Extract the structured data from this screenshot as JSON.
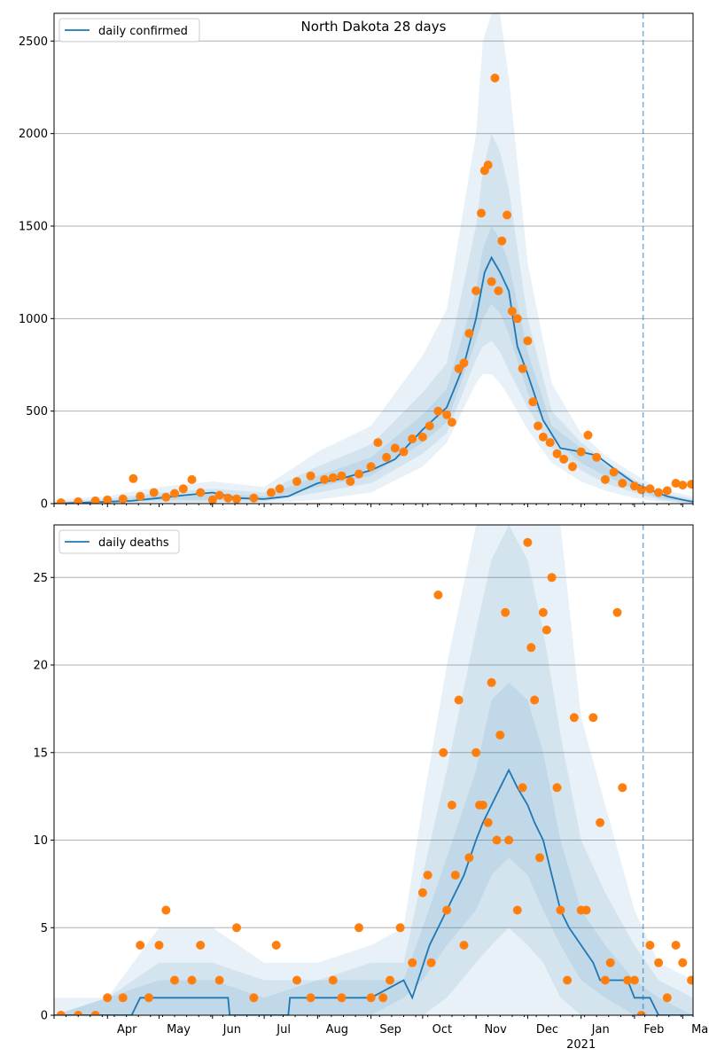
{
  "chart_data": [
    {
      "type": "line",
      "title": "North Dakota 28 days",
      "legend": {
        "label": "daily confirmed",
        "placement": "top-left"
      },
      "ylim": [
        0,
        2650
      ],
      "yticks": [
        0,
        500,
        1000,
        1500,
        2000,
        2500
      ],
      "ytick_labels": [
        "0",
        "500",
        "1000",
        "1500",
        "2000",
        "2500"
      ],
      "grid": "horizontal",
      "colors": {
        "line": "#1f77b4",
        "band": "#1f77b4",
        "points": "#ff7f0e",
        "vline": "#1f77b4"
      },
      "forecast_start": "2021-02-06",
      "series": [
        {
          "kind": "line",
          "x": [
            "2020-03-01",
            "2020-03-15",
            "2020-04-01",
            "2020-04-15",
            "2020-05-01",
            "2020-05-15",
            "2020-06-01",
            "2020-06-15",
            "2020-07-01",
            "2020-07-15",
            "2020-08-01",
            "2020-08-15",
            "2020-09-01",
            "2020-09-15",
            "2020-10-01",
            "2020-10-15",
            "2020-10-25",
            "2020-11-01",
            "2020-11-06",
            "2020-11-10",
            "2020-11-15",
            "2020-11-20",
            "2020-11-25",
            "2020-12-01",
            "2020-12-10",
            "2020-12-20",
            "2021-01-01",
            "2021-01-10",
            "2021-01-20",
            "2021-02-01",
            "2021-02-10",
            "2021-02-20",
            "2021-03-01",
            "2021-03-07"
          ],
          "y": [
            0,
            5,
            10,
            15,
            30,
            45,
            60,
            30,
            25,
            40,
            110,
            135,
            180,
            240,
            400,
            520,
            750,
            1000,
            1250,
            1330,
            1250,
            1150,
            850,
            700,
            450,
            300,
            280,
            260,
            190,
            110,
            75,
            40,
            20,
            10
          ]
        },
        {
          "kind": "band",
          "x": [
            "2020-03-01",
            "2020-04-01",
            "2020-05-01",
            "2020-06-01",
            "2020-07-01",
            "2020-08-01",
            "2020-09-01",
            "2020-10-01",
            "2020-10-15",
            "2020-11-01",
            "2020-11-05",
            "2020-11-10",
            "2020-11-15",
            "2020-11-20",
            "2020-12-01",
            "2020-12-15",
            "2021-01-01",
            "2021-01-15",
            "2021-02-01",
            "2021-02-15",
            "2021-03-07"
          ],
          "lower": [
            0,
            0,
            0,
            0,
            0,
            20,
            60,
            200,
            330,
            650,
            700,
            700,
            650,
            580,
            400,
            220,
            120,
            70,
            30,
            10,
            0
          ],
          "upper": [
            20,
            40,
            90,
            120,
            90,
            280,
            420,
            800,
            1050,
            2000,
            2500,
            2650,
            2650,
            2300,
            1300,
            650,
            380,
            260,
            160,
            80,
            40
          ]
        },
        {
          "kind": "band",
          "x": [
            "2020-03-01",
            "2020-04-01",
            "2020-05-01",
            "2020-06-01",
            "2020-07-01",
            "2020-08-01",
            "2020-09-01",
            "2020-10-01",
            "2020-10-15",
            "2020-11-01",
            "2020-11-05",
            "2020-11-10",
            "2020-11-15",
            "2020-11-20",
            "2020-12-01",
            "2020-12-15",
            "2021-01-01",
            "2021-01-15",
            "2021-02-01",
            "2021-02-15",
            "2021-03-07"
          ],
          "lower": [
            0,
            0,
            10,
            10,
            10,
            60,
            110,
            270,
            380,
            780,
            850,
            880,
            820,
            720,
            520,
            300,
            180,
            110,
            60,
            20,
            0
          ],
          "upper": [
            10,
            25,
            60,
            80,
            60,
            200,
            320,
            600,
            760,
            1500,
            1800,
            2000,
            1900,
            1700,
            1000,
            500,
            330,
            230,
            130,
            60,
            25
          ]
        },
        {
          "kind": "band",
          "x": [
            "2020-03-01",
            "2020-04-01",
            "2020-05-01",
            "2020-06-01",
            "2020-07-01",
            "2020-08-01",
            "2020-09-01",
            "2020-10-01",
            "2020-10-15",
            "2020-11-01",
            "2020-11-05",
            "2020-11-10",
            "2020-11-15",
            "2020-11-20",
            "2020-12-01",
            "2020-12-15",
            "2021-01-01",
            "2021-01-15",
            "2021-02-01",
            "2021-02-15",
            "2021-03-07"
          ],
          "lower": [
            0,
            5,
            20,
            20,
            20,
            90,
            150,
            330,
            440,
            880,
            1000,
            1080,
            1030,
            920,
            600,
            360,
            220,
            150,
            80,
            30,
            5
          ],
          "upper": [
            5,
            15,
            45,
            55,
            40,
            150,
            250,
            480,
            620,
            1150,
            1380,
            1500,
            1430,
            1300,
            820,
            420,
            300,
            210,
            110,
            50,
            15
          ]
        },
        {
          "kind": "points",
          "x": [
            "2020-03-05",
            "2020-03-15",
            "2020-03-25",
            "2020-04-01",
            "2020-04-10",
            "2020-04-16",
            "2020-04-20",
            "2020-04-28",
            "2020-05-05",
            "2020-05-10",
            "2020-05-15",
            "2020-05-20",
            "2020-05-25",
            "2020-06-01",
            "2020-06-05",
            "2020-06-10",
            "2020-06-15",
            "2020-06-25",
            "2020-07-05",
            "2020-07-10",
            "2020-07-20",
            "2020-07-28",
            "2020-08-05",
            "2020-08-10",
            "2020-08-15",
            "2020-08-20",
            "2020-08-25",
            "2020-09-01",
            "2020-09-05",
            "2020-09-10",
            "2020-09-15",
            "2020-09-20",
            "2020-09-25",
            "2020-10-01",
            "2020-10-05",
            "2020-10-10",
            "2020-10-15",
            "2020-10-18",
            "2020-10-22",
            "2020-10-25",
            "2020-10-28",
            "2020-11-01",
            "2020-11-04",
            "2020-11-06",
            "2020-11-08",
            "2020-11-10",
            "2020-11-12",
            "2020-11-14",
            "2020-11-16",
            "2020-11-19",
            "2020-11-22",
            "2020-11-25",
            "2020-11-28",
            "2020-12-01",
            "2020-12-04",
            "2020-12-07",
            "2020-12-10",
            "2020-12-14",
            "2020-12-18",
            "2020-12-22",
            "2020-12-27",
            "2021-01-01",
            "2021-01-05",
            "2021-01-10",
            "2021-01-15",
            "2021-01-20",
            "2021-01-25",
            "2021-02-01",
            "2021-02-05",
            "2021-02-10",
            "2021-02-15",
            "2021-02-20",
            "2021-02-25",
            "2021-03-01",
            "2021-03-06"
          ],
          "y": [
            5,
            10,
            15,
            20,
            25,
            135,
            40,
            60,
            35,
            55,
            80,
            130,
            60,
            20,
            45,
            30,
            25,
            30,
            60,
            80,
            120,
            150,
            130,
            140,
            150,
            120,
            160,
            200,
            330,
            250,
            300,
            280,
            350,
            360,
            420,
            500,
            480,
            440,
            730,
            760,
            920,
            1150,
            1570,
            1800,
            1830,
            1200,
            2300,
            1150,
            1420,
            1560,
            1040,
            1000,
            730,
            880,
            550,
            420,
            360,
            330,
            270,
            240,
            200,
            280,
            370,
            250,
            130,
            170,
            110,
            95,
            75,
            80,
            60,
            70,
            110,
            100,
            105
          ]
        }
      ]
    },
    {
      "type": "line",
      "title": "",
      "legend": {
        "label": "daily deaths",
        "placement": "top-left"
      },
      "ylim": [
        0,
        28
      ],
      "yticks": [
        0,
        5,
        10,
        15,
        20,
        25
      ],
      "ytick_labels": [
        "0",
        "5",
        "10",
        "15",
        "20",
        "25"
      ],
      "grid": "horizontal",
      "colors": {
        "line": "#1f77b4",
        "band": "#1f77b4",
        "points": "#ff7f0e",
        "vline": "#1f77b4"
      },
      "forecast_start": "2021-02-06",
      "xticks": [
        "2020-04-01",
        "2020-05-01",
        "2020-06-01",
        "2020-07-01",
        "2020-08-01",
        "2020-09-01",
        "2020-10-01",
        "2020-11-01",
        "2020-12-01",
        "2021-01-01",
        "2021-02-01",
        "2021-03-01"
      ],
      "xtick_labels": [
        "Apr",
        "May",
        "Jun",
        "Jul",
        "Aug",
        "Sep",
        "Oct",
        "Nov",
        "Dec",
        "Jan",
        "Feb",
        "Mar"
      ],
      "x_sublabel": "2021",
      "series": [
        {
          "kind": "line",
          "x": [
            "2020-03-01",
            "2020-04-15",
            "2020-04-20",
            "2020-05-15",
            "2020-06-10",
            "2020-06-11",
            "2020-07-15",
            "2020-07-16",
            "2020-08-20",
            "2020-09-01",
            "2020-09-20",
            "2020-09-25",
            "2020-10-05",
            "2020-10-15",
            "2020-10-20",
            "2020-10-25",
            "2020-11-01",
            "2020-11-05",
            "2020-11-10",
            "2020-11-15",
            "2020-11-20",
            "2020-11-25",
            "2020-12-01",
            "2020-12-05",
            "2020-12-10",
            "2020-12-15",
            "2020-12-20",
            "2020-12-25",
            "2021-01-01",
            "2021-01-08",
            "2021-01-12",
            "2021-01-20",
            "2021-01-28",
            "2021-02-01",
            "2021-02-10",
            "2021-02-15",
            "2021-03-07"
          ],
          "y": [
            0,
            0,
            1,
            1,
            1,
            0,
            0,
            1,
            1,
            1,
            2,
            1,
            4,
            6,
            7,
            8,
            10,
            11,
            12,
            13,
            14,
            13,
            12,
            11,
            10,
            8,
            6,
            5,
            4,
            3,
            2,
            2,
            2,
            1,
            1,
            0,
            0
          ]
        },
        {
          "kind": "band",
          "x": [
            "2020-03-01",
            "2020-04-01",
            "2020-05-01",
            "2020-06-01",
            "2020-07-01",
            "2020-08-01",
            "2020-09-01",
            "2020-09-20",
            "2020-10-01",
            "2020-10-15",
            "2020-11-01",
            "2020-11-10",
            "2020-11-20",
            "2020-12-01",
            "2020-12-10",
            "2020-12-20",
            "2021-01-01",
            "2021-01-15",
            "2021-02-01",
            "2021-02-15",
            "2021-03-07"
          ],
          "lower": [
            0,
            0,
            0,
            0,
            0,
            0,
            0,
            0,
            0,
            0,
            0,
            0,
            0,
            0,
            0,
            0,
            0,
            0,
            0,
            0,
            0
          ],
          "upper": [
            1,
            1,
            5,
            5,
            3,
            3,
            4,
            5,
            12,
            20,
            28,
            28,
            28,
            28,
            28,
            28,
            17,
            12,
            6,
            3,
            2
          ]
        },
        {
          "kind": "band",
          "x": [
            "2020-03-01",
            "2020-04-01",
            "2020-05-01",
            "2020-06-01",
            "2020-07-01",
            "2020-08-01",
            "2020-09-01",
            "2020-09-20",
            "2020-10-01",
            "2020-10-15",
            "2020-11-01",
            "2020-11-10",
            "2020-11-20",
            "2020-12-01",
            "2020-12-10",
            "2020-12-20",
            "2021-01-01",
            "2021-01-15",
            "2021-02-01",
            "2021-02-15",
            "2021-03-07"
          ],
          "lower": [
            0,
            0,
            0,
            0,
            0,
            0,
            0,
            0,
            0,
            1,
            3,
            4,
            5,
            4,
            3,
            1,
            0,
            0,
            0,
            0,
            0
          ],
          "upper": [
            0,
            1,
            3,
            3,
            2,
            2,
            3,
            3,
            8,
            14,
            22,
            26,
            28,
            26,
            22,
            16,
            10,
            7,
            4,
            2,
            1
          ]
        },
        {
          "kind": "band",
          "x": [
            "2020-03-01",
            "2020-04-01",
            "2020-05-01",
            "2020-06-01",
            "2020-07-01",
            "2020-08-01",
            "2020-09-01",
            "2020-09-20",
            "2020-10-01",
            "2020-10-15",
            "2020-11-01",
            "2020-11-10",
            "2020-11-20",
            "2020-12-01",
            "2020-12-10",
            "2020-12-20",
            "2021-01-01",
            "2021-01-15",
            "2021-02-01",
            "2021-02-15",
            "2021-03-07"
          ],
          "lower": [
            0,
            0,
            0,
            0,
            0,
            0,
            0,
            1,
            2,
            4,
            6,
            8,
            9,
            8,
            6,
            4,
            2,
            1,
            0,
            0,
            0
          ],
          "upper": [
            0,
            1,
            2,
            2,
            1,
            2,
            2,
            2,
            5,
            9,
            14,
            18,
            19,
            18,
            15,
            10,
            6,
            4,
            2,
            1,
            0
          ]
        },
        {
          "kind": "points",
          "x": [
            "2020-03-05",
            "2020-03-15",
            "2020-03-25",
            "2020-04-01",
            "2020-04-10",
            "2020-04-20",
            "2020-04-25",
            "2020-05-01",
            "2020-05-05",
            "2020-05-10",
            "2020-05-20",
            "2020-05-25",
            "2020-06-05",
            "2020-06-15",
            "2020-06-25",
            "2020-07-08",
            "2020-07-20",
            "2020-07-28",
            "2020-08-10",
            "2020-08-15",
            "2020-08-25",
            "2020-09-01",
            "2020-09-08",
            "2020-09-12",
            "2020-09-18",
            "2020-09-25",
            "2020-10-01",
            "2020-10-04",
            "2020-10-06",
            "2020-10-10",
            "2020-10-13",
            "2020-10-15",
            "2020-10-18",
            "2020-10-20",
            "2020-10-22",
            "2020-10-25",
            "2020-10-28",
            "2020-11-01",
            "2020-11-03",
            "2020-11-05",
            "2020-11-08",
            "2020-11-10",
            "2020-11-13",
            "2020-11-15",
            "2020-11-18",
            "2020-11-20",
            "2020-11-25",
            "2020-11-28",
            "2020-12-01",
            "2020-12-03",
            "2020-12-05",
            "2020-12-08",
            "2020-12-10",
            "2020-12-12",
            "2020-12-15",
            "2020-12-18",
            "2020-12-20",
            "2020-12-24",
            "2020-12-28",
            "2021-01-01",
            "2021-01-04",
            "2021-01-08",
            "2021-01-12",
            "2021-01-15",
            "2021-01-18",
            "2021-01-22",
            "2021-01-25",
            "2021-01-28",
            "2021-02-01",
            "2021-02-05",
            "2021-02-10",
            "2021-02-15",
            "2021-02-20",
            "2021-02-25",
            "2021-03-01",
            "2021-03-06"
          ],
          "y": [
            0,
            0,
            0,
            1,
            1,
            4,
            1,
            4,
            6,
            2,
            2,
            4,
            2,
            5,
            1,
            4,
            2,
            1,
            2,
            1,
            5,
            1,
            1,
            2,
            5,
            3,
            7,
            8,
            3,
            24,
            15,
            6,
            12,
            8,
            18,
            4,
            9,
            15,
            12,
            12,
            11,
            19,
            10,
            16,
            23,
            10,
            6,
            13,
            27,
            21,
            18,
            9,
            23,
            22,
            25,
            13,
            6,
            2,
            17,
            6,
            6,
            17,
            11,
            2,
            3,
            23,
            13,
            2,
            2,
            0,
            4,
            3,
            1,
            4,
            3,
            2
          ]
        }
      ]
    }
  ]
}
